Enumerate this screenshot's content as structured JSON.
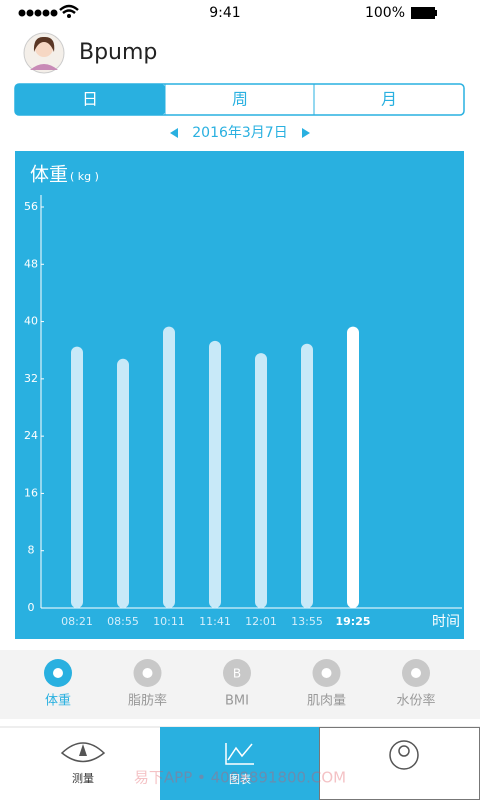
{
  "status_bar": {
    "time": "9:41",
    "battery": "100%"
  },
  "header": {
    "title": "Bpump"
  },
  "tabs": [
    "日",
    "周",
    "月"
  ],
  "date": "2016年3月7日",
  "chart_data": {
    "type": "bar",
    "title": "体重",
    "unit": "( kg )",
    "x_label": "时间",
    "categories": [
      "08:21",
      "08:55",
      "10:11",
      "11:41",
      "12:01",
      "13:55",
      "19:25"
    ],
    "values": [
      36.5,
      34.8,
      39.3,
      37.3,
      35.6,
      36.9,
      39.3
    ],
    "colors": [
      "#c8e9f8",
      "#c8e9f8",
      "#c8e9f8",
      "#c8e9f8",
      "#c8e9f8",
      "#c8e9f8",
      "#ffffff"
    ],
    "ylim": [
      0,
      56
    ],
    "yticks": [
      0,
      8,
      16,
      24,
      32,
      40,
      48,
      56
    ]
  },
  "metrics": [
    {
      "label": "体重"
    },
    {
      "label": "脂肪率"
    },
    {
      "label": "BMI",
      "icon": "B"
    },
    {
      "label": "肌肉量"
    },
    {
      "label": "水份率"
    }
  ],
  "nav": [
    "测量",
    "图表"
  ],
  "watermark": "易下APP • 4008891800.COM"
}
